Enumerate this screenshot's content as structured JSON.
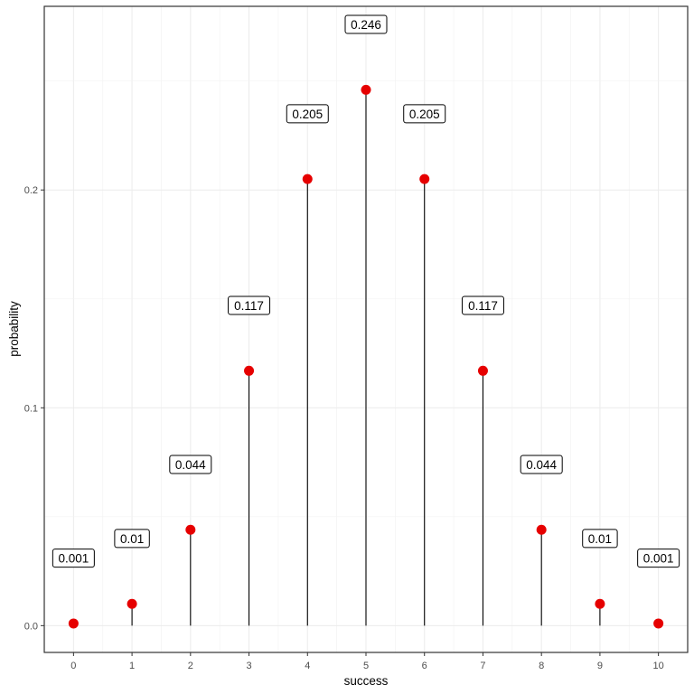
{
  "chart_data": {
    "type": "scatter",
    "subtype": "lollipop",
    "title": "",
    "xlabel": "success",
    "ylabel": "probability",
    "x": [
      0,
      1,
      2,
      3,
      4,
      5,
      6,
      7,
      8,
      9,
      10
    ],
    "values": [
      0.001,
      0.01,
      0.044,
      0.117,
      0.205,
      0.246,
      0.205,
      0.117,
      0.044,
      0.01,
      0.001
    ],
    "labels": [
      "0.001",
      "0.01",
      "0.044",
      "0.117",
      "0.205",
      "0.246",
      "0.205",
      "0.117",
      "0.044",
      "0.01",
      "0.001"
    ],
    "xticks": [
      "0",
      "1",
      "2",
      "3",
      "4",
      "5",
      "6",
      "7",
      "8",
      "9",
      "10"
    ],
    "yticks": [
      "0.0",
      "0.1",
      "0.2"
    ],
    "ytick_values": [
      0.0,
      0.1,
      0.2
    ],
    "xlim": [
      -0.5,
      10.5
    ],
    "ylim": [
      -0.0123,
      0.2843
    ],
    "grid": true,
    "legend": null,
    "point_color": "#e60000",
    "segment_color": "#000000"
  }
}
